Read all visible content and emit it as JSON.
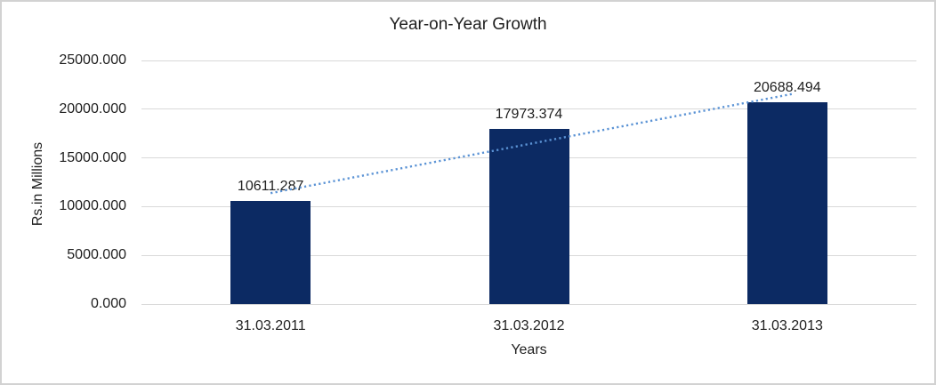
{
  "chart_data": {
    "type": "bar",
    "title": "Year-on-Year Growth",
    "xlabel": "Years",
    "ylabel": "Rs.in Millions",
    "categories": [
      "31.03.2011",
      "31.03.2012",
      "31.03.2013"
    ],
    "values": [
      10611.287,
      17973.374,
      20688.494
    ],
    "data_labels": [
      "10611.287",
      "17973.374",
      "20688.494"
    ],
    "ylim": [
      0,
      25000
    ],
    "yticks": [
      0,
      5000,
      10000,
      15000,
      20000,
      25000
    ],
    "ytick_labels": [
      "0.000",
      "5000.000",
      "10000.000",
      "15000.000",
      "20000.000",
      "25000.000"
    ],
    "grid": true,
    "legend": false,
    "trendline": {
      "type": "linear",
      "style": "dotted"
    },
    "colors": {
      "bar": "#0c2a63",
      "trendline": "#5b93d5",
      "gridline": "#d9d9d9",
      "text": "#1f1f1f",
      "border": "#d2d2d2",
      "background": "#ffffff"
    }
  }
}
